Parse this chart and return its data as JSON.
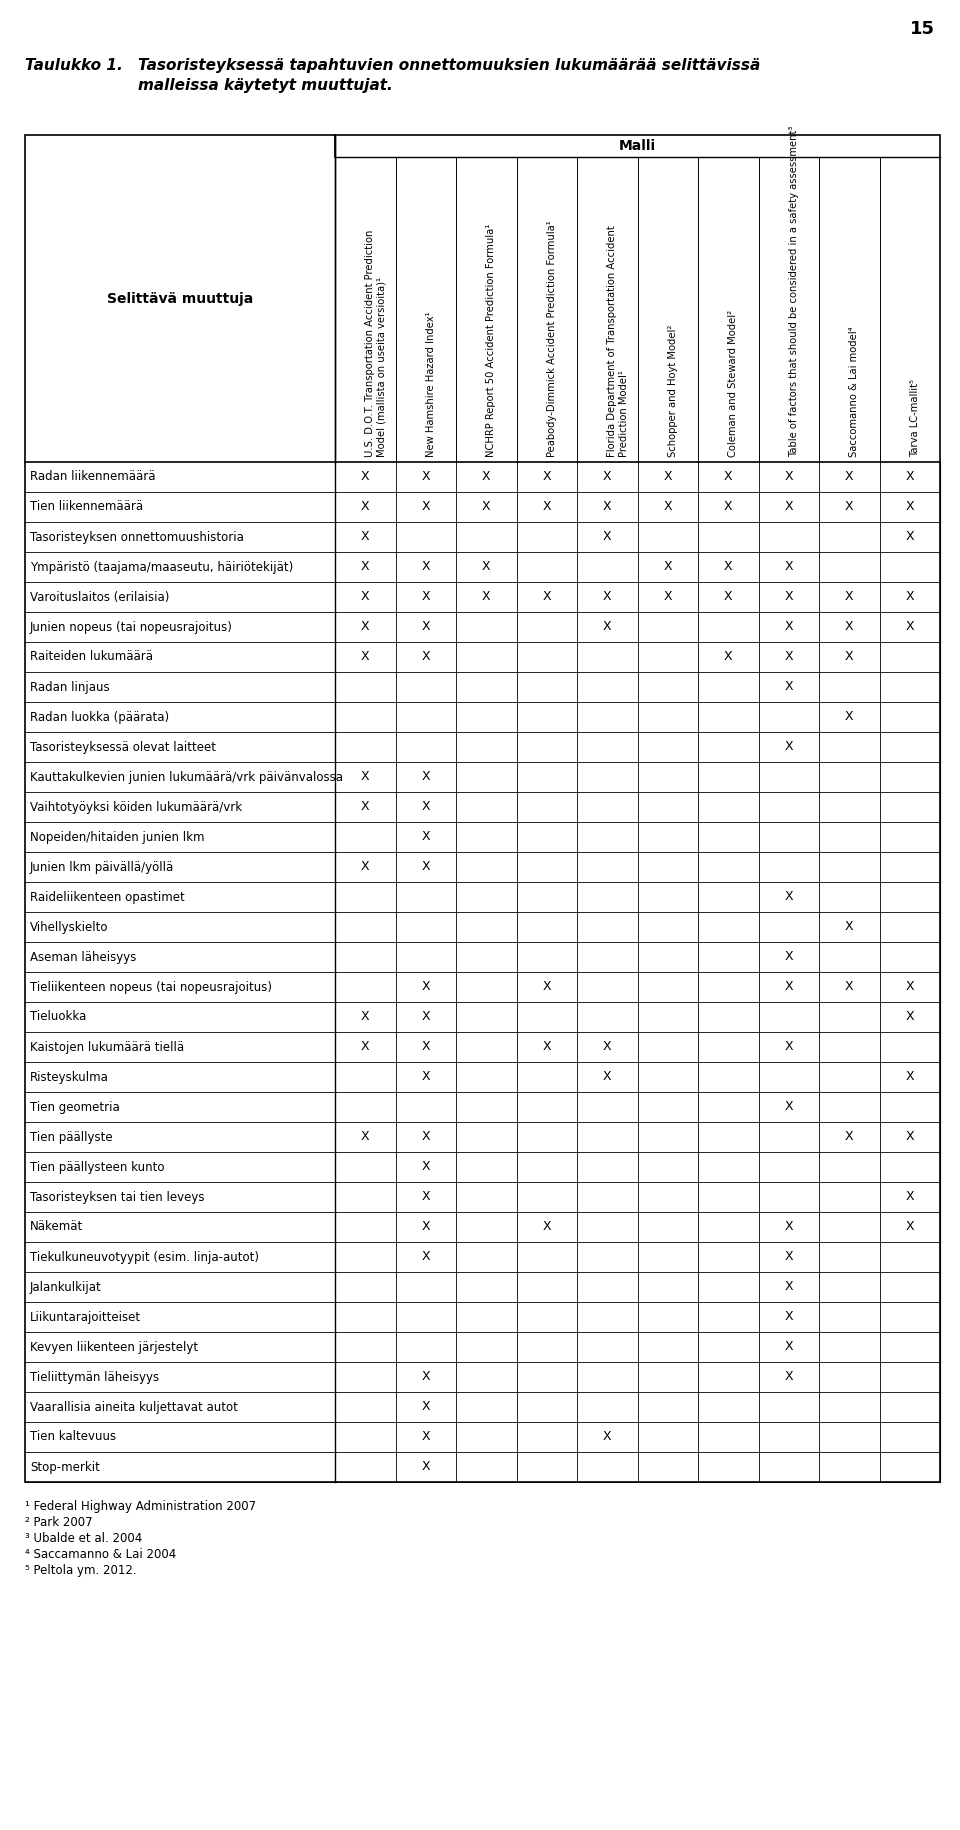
{
  "page_number": "15",
  "title_label": "Taulukko 1.",
  "title_text": "Tasoristeyksessä tapahtuvien onnettomuuksien lukumäärää selittävissä\nmalleissa käytetyt muuttujat.",
  "row_header": "Selittävä muuttuja",
  "malli_header": "Malli",
  "columns": [
    "U.S. D.O.T. Transportation Accident Prediction\nModel (mallista on useita versioita)¹",
    "New Hamshire Hazard Index¹",
    "NCHRP Report 50 Accident Prediction Formula¹",
    "Peabody-Dimmick Accident Prediction Formula¹",
    "Florida Department of Transportation Accident\nPrediction Model¹",
    "Schopper and Hoyt Model²",
    "Coleman and Steward Model²",
    "Table of factors that should be considered in a safety assessment³",
    "Saccomanno & Lai model⁴",
    "Tarva LC-mallit⁵"
  ],
  "rows": [
    {
      "label": "Radan liikennemäärä",
      "marks": [
        1,
        1,
        1,
        1,
        1,
        1,
        1,
        1,
        1,
        1
      ]
    },
    {
      "label": "Tien liikennemäärä",
      "marks": [
        1,
        1,
        1,
        1,
        1,
        1,
        1,
        1,
        1,
        1
      ]
    },
    {
      "label": "Tasoristeyksen onnettomuushistoria",
      "marks": [
        1,
        0,
        0,
        0,
        1,
        0,
        0,
        0,
        0,
        1
      ]
    },
    {
      "label": "Ympäristö (taajama/maaseutu, häiriötekijät)",
      "marks": [
        1,
        1,
        1,
        0,
        0,
        1,
        1,
        1,
        0,
        0
      ]
    },
    {
      "label": "Varoituslaitos (erilaisia)",
      "marks": [
        1,
        1,
        1,
        1,
        1,
        1,
        1,
        1,
        1,
        1
      ]
    },
    {
      "label": "Junien nopeus (tai nopeusrajoitus)",
      "marks": [
        1,
        1,
        0,
        0,
        1,
        0,
        0,
        1,
        1,
        1
      ]
    },
    {
      "label": "Raiteiden lukumäärä",
      "marks": [
        1,
        1,
        0,
        0,
        0,
        0,
        1,
        1,
        1,
        0
      ]
    },
    {
      "label": "Radan linjaus",
      "marks": [
        0,
        0,
        0,
        0,
        0,
        0,
        0,
        1,
        0,
        0
      ]
    },
    {
      "label": "Radan luokka (päärata)",
      "marks": [
        0,
        0,
        0,
        0,
        0,
        0,
        0,
        0,
        1,
        0
      ]
    },
    {
      "label": "Tasoristeyksessä olevat laitteet",
      "marks": [
        0,
        0,
        0,
        0,
        0,
        0,
        0,
        1,
        0,
        0
      ]
    },
    {
      "label": "Kauttakulkevien junien lukumäärä/vrk päivänvalossa",
      "marks": [
        1,
        1,
        0,
        0,
        0,
        0,
        0,
        0,
        0,
        0
      ]
    },
    {
      "label": "Vaihtotyöyksi köiden lukumäärä/vrk",
      "marks": [
        1,
        1,
        0,
        0,
        0,
        0,
        0,
        0,
        0,
        0
      ]
    },
    {
      "label": "Nopeiden/hitaiden junien lkm",
      "marks": [
        0,
        1,
        0,
        0,
        0,
        0,
        0,
        0,
        0,
        0
      ]
    },
    {
      "label": "Junien lkm päivällä/yöllä",
      "marks": [
        1,
        1,
        0,
        0,
        0,
        0,
        0,
        0,
        0,
        0
      ]
    },
    {
      "label": "Raideliikenteen opastimet",
      "marks": [
        0,
        0,
        0,
        0,
        0,
        0,
        0,
        1,
        0,
        0
      ]
    },
    {
      "label": "Vihellyskielto",
      "marks": [
        0,
        0,
        0,
        0,
        0,
        0,
        0,
        0,
        1,
        0
      ]
    },
    {
      "label": "Aseman läheisyys",
      "marks": [
        0,
        0,
        0,
        0,
        0,
        0,
        0,
        1,
        0,
        0
      ]
    },
    {
      "label": "Tieliikenteen nopeus (tai nopeusrajoitus)",
      "marks": [
        0,
        1,
        0,
        1,
        0,
        0,
        0,
        1,
        1,
        1
      ]
    },
    {
      "label": "Tieluokka",
      "marks": [
        1,
        1,
        0,
        0,
        0,
        0,
        0,
        0,
        0,
        1
      ]
    },
    {
      "label": "Kaistojen lukumäärä tiellä",
      "marks": [
        1,
        1,
        0,
        1,
        1,
        0,
        0,
        1,
        0,
        0
      ]
    },
    {
      "label": "Risteyskulma",
      "marks": [
        0,
        1,
        0,
        0,
        1,
        0,
        0,
        0,
        0,
        1
      ]
    },
    {
      "label": "Tien geometria",
      "marks": [
        0,
        0,
        0,
        0,
        0,
        0,
        0,
        1,
        0,
        0
      ]
    },
    {
      "label": "Tien päällyste",
      "marks": [
        1,
        1,
        0,
        0,
        0,
        0,
        0,
        0,
        1,
        1
      ]
    },
    {
      "label": "Tien päällysteen kunto",
      "marks": [
        0,
        1,
        0,
        0,
        0,
        0,
        0,
        0,
        0,
        0
      ]
    },
    {
      "label": "Tasoristeyksen tai tien leveys",
      "marks": [
        0,
        1,
        0,
        0,
        0,
        0,
        0,
        0,
        0,
        1
      ]
    },
    {
      "label": "Näkemät",
      "marks": [
        0,
        1,
        0,
        1,
        0,
        0,
        0,
        1,
        0,
        1
      ]
    },
    {
      "label": "Tiekulkuneuvotyypit (esim. linja-autot)",
      "marks": [
        0,
        1,
        0,
        0,
        0,
        0,
        0,
        1,
        0,
        0
      ]
    },
    {
      "label": "Jalankulkijat",
      "marks": [
        0,
        0,
        0,
        0,
        0,
        0,
        0,
        1,
        0,
        0
      ]
    },
    {
      "label": "Liikuntarajoitteiset",
      "marks": [
        0,
        0,
        0,
        0,
        0,
        0,
        0,
        1,
        0,
        0
      ]
    },
    {
      "label": "Kevyen liikenteen järjestelyt",
      "marks": [
        0,
        0,
        0,
        0,
        0,
        0,
        0,
        1,
        0,
        0
      ]
    },
    {
      "label": "Tieliittymän läheisyys",
      "marks": [
        0,
        1,
        0,
        0,
        0,
        0,
        0,
        1,
        0,
        0
      ]
    },
    {
      "label": "Vaarallisia aineita kuljettavat autot",
      "marks": [
        0,
        1,
        0,
        0,
        0,
        0,
        0,
        0,
        0,
        0
      ]
    },
    {
      "label": "Tien kaltevuus",
      "marks": [
        0,
        1,
        0,
        0,
        1,
        0,
        0,
        0,
        0,
        0
      ]
    },
    {
      "label": "Stop-merkit",
      "marks": [
        0,
        1,
        0,
        0,
        0,
        0,
        0,
        0,
        0,
        0
      ]
    }
  ],
  "footnotes": [
    "¹ Federal Highway Administration 2007",
    "² Park 2007",
    "³ Ubalde et al. 2004",
    "⁴ Saccamanno & Lai 2004",
    "⁵ Peltola ym. 2012."
  ]
}
